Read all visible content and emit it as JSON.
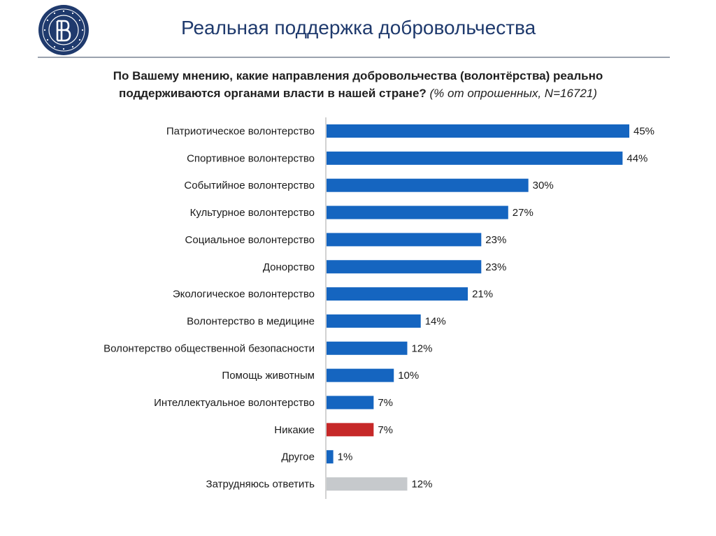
{
  "header": {
    "title": "Реальная поддержка добровольчества"
  },
  "question": {
    "line1": "По Вашему мнению, какие направления добровольчества (волонтёрства) реально",
    "line2": "поддерживаются органами власти в нашей стране?",
    "note": "(% от опрошенных, N=16721)"
  },
  "colors": {
    "accent": "#1f3a6d",
    "bar_main": "#1565c0",
    "bar_none": "#c62828",
    "bar_hard": "#c6c9cc"
  },
  "chart_data": {
    "type": "bar",
    "orientation": "horizontal",
    "value_unit": "%",
    "xlim": [
      0,
      45
    ],
    "categories": [
      "Патриотическое волонтерство",
      "Спортивное волонтерство",
      "Событийное волонтерство",
      "Культурное волонтерство",
      "Социальное волонтерство",
      "Донорство",
      "Экологическое волонтерство",
      "Волонтерство в медицине",
      "Волонтерство общественной безопасности",
      "Помощь животным",
      "Интеллектуальное волонтерство",
      "Никакие",
      "Другое",
      "Затрудняюсь ответить"
    ],
    "values": [
      45,
      44,
      30,
      27,
      23,
      23,
      21,
      14,
      12,
      10,
      7,
      7,
      1,
      12
    ],
    "labels": [
      "45%",
      "44%",
      "30%",
      "27%",
      "23%",
      "23%",
      "21%",
      "14%",
      "12%",
      "10%",
      "7%",
      "7%",
      "1%",
      "12%"
    ],
    "color_keys": [
      "main",
      "main",
      "main",
      "main",
      "main",
      "main",
      "main",
      "main",
      "main",
      "main",
      "main",
      "none",
      "main",
      "hard"
    ]
  }
}
